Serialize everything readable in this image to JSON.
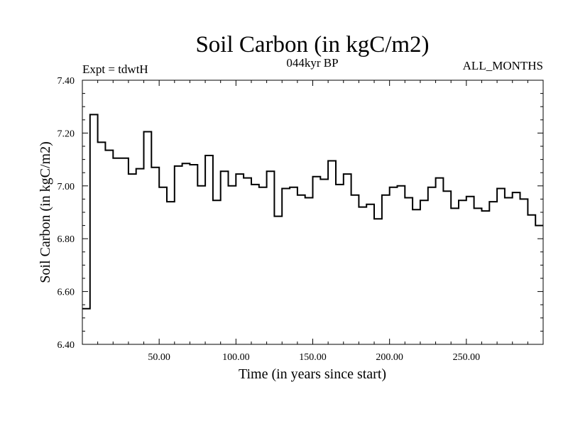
{
  "chart_data": {
    "type": "line",
    "step": true,
    "title": "Soil Carbon (in kgC/m2)",
    "subtitle_left": "Expt = tdwtH",
    "subtitle_center": "044kyr BP",
    "subtitle_right": "ALL_MONTHS",
    "xlabel": "Time (in years since start)",
    "ylabel": "Soil Carbon (in kgC/m2)",
    "xlim": [
      0,
      300
    ],
    "ylim": [
      6.4,
      7.4
    ],
    "xticks": [
      50,
      100,
      150,
      200,
      250
    ],
    "xtick_labels": [
      "50.00",
      "100.00",
      "150.00",
      "200.00",
      "250.00"
    ],
    "yticks": [
      6.4,
      6.6,
      6.8,
      7.0,
      7.2,
      7.4
    ],
    "ytick_labels": [
      "6.40",
      "6.60",
      "6.80",
      "7.00",
      "7.20",
      "7.40"
    ],
    "bin_width": 5,
    "values": [
      6.535,
      7.27,
      7.165,
      7.135,
      7.105,
      7.105,
      7.045,
      7.065,
      7.205,
      7.07,
      6.995,
      6.94,
      7.075,
      7.085,
      7.08,
      7.0,
      7.115,
      6.945,
      7.055,
      7.0,
      7.045,
      7.03,
      7.005,
      6.995,
      7.055,
      6.885,
      6.99,
      6.995,
      6.965,
      6.955,
      7.035,
      7.025,
      7.095,
      7.005,
      7.045,
      6.965,
      6.92,
      6.93,
      6.875,
      6.965,
      6.995,
      7.0,
      6.955,
      6.91,
      6.945,
      6.995,
      7.03,
      6.98,
      6.915,
      6.945,
      6.96,
      6.915,
      6.905,
      6.94,
      6.99,
      6.955,
      6.975,
      6.95,
      6.89,
      6.85
    ]
  }
}
